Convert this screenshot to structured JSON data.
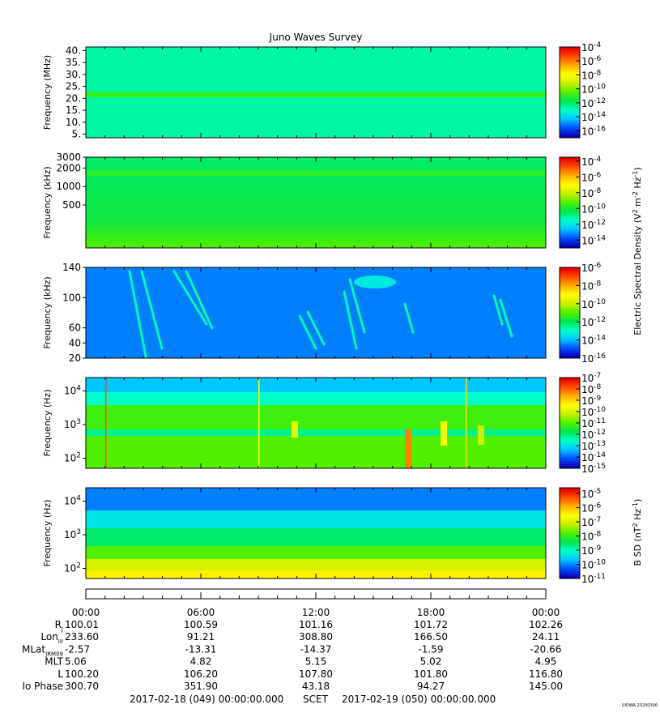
{
  "title": "Juno Waves Survey",
  "credit": "UIOWA 20200306",
  "colors": {
    "colormap": [
      "#0a00b4",
      "#0050ff",
      "#00c8ff",
      "#00ffc8",
      "#00e650",
      "#50f000",
      "#c8f000",
      "#ffff00",
      "#ffb400",
      "#ff5000",
      "#e60000"
    ]
  },
  "chart_data": [
    {
      "type": "heatmap",
      "ylabel": "Frequency (MHz)",
      "yticks": [
        "5.",
        "10.",
        "15.",
        "20.",
        "25.",
        "30.",
        "35.",
        "40."
      ],
      "ylim": [
        3.5,
        41.5
      ],
      "background_level": 0.33,
      "bands": [
        {
          "freq": 21.5,
          "level": 0.47
        }
      ],
      "colorbar_ticks": [
        {
          "base": "10",
          "exp": "-4"
        },
        {
          "base": "10",
          "exp": "-6"
        },
        {
          "base": "10",
          "exp": "-8"
        },
        {
          "base": "10",
          "exp": "-10"
        },
        {
          "base": "10",
          "exp": "-12"
        },
        {
          "base": "10",
          "exp": "-14"
        },
        {
          "base": "10",
          "exp": "-16"
        }
      ],
      "clim_exp": [
        -17,
        -4
      ]
    },
    {
      "type": "heatmap",
      "ylabel": "Frequency (kHz)",
      "yticks": [
        "500",
        "1000",
        "2000",
        "3000"
      ],
      "ylim": [
        100,
        3000
      ],
      "scale": "log",
      "background_level": 0.4,
      "bands": [
        {
          "freq": 1650,
          "level": 0.46
        }
      ],
      "colorbar_ticks": [
        {
          "base": "10",
          "exp": "-4"
        },
        {
          "base": "10",
          "exp": "-6"
        },
        {
          "base": "10",
          "exp": "-8"
        },
        {
          "base": "10",
          "exp": "-10"
        },
        {
          "base": "10",
          "exp": "-12"
        },
        {
          "base": "10",
          "exp": "-14"
        }
      ],
      "clim_exp": [
        -15,
        -3.5
      ]
    },
    {
      "type": "heatmap",
      "ylabel": "Frequency (kHz)",
      "yticks": [
        "20",
        "40",
        "60",
        "100",
        "140"
      ],
      "ylim": [
        20,
        140
      ],
      "background_level": 0.14,
      "colorbar_ticks": [
        {
          "base": "10",
          "exp": "-6"
        },
        {
          "base": "10",
          "exp": "-8"
        },
        {
          "base": "10",
          "exp": "-10"
        },
        {
          "base": "10",
          "exp": "-12"
        },
        {
          "base": "10",
          "exp": "-14"
        },
        {
          "base": "10",
          "exp": "-16"
        }
      ],
      "clim_exp": [
        -16,
        -6
      ]
    },
    {
      "type": "heatmap",
      "ylabel": "Frequency (Hz)",
      "yticks": [
        {
          "base": "10",
          "exp": "2"
        },
        {
          "base": "10",
          "exp": "3"
        },
        {
          "base": "10",
          "exp": "4"
        }
      ],
      "ylim": [
        50,
        25000
      ],
      "scale": "log",
      "colorbar_ticks": [
        {
          "base": "10",
          "exp": "-7"
        },
        {
          "base": "10",
          "exp": "-8"
        },
        {
          "base": "10",
          "exp": "-9"
        },
        {
          "base": "10",
          "exp": "-10"
        },
        {
          "base": "10",
          "exp": "-11"
        },
        {
          "base": "10",
          "exp": "-12"
        },
        {
          "base": "10",
          "exp": "-13"
        },
        {
          "base": "10",
          "exp": "-14"
        },
        {
          "base": "10",
          "exp": "-15"
        }
      ],
      "clim_exp": [
        -15,
        -7
      ]
    },
    {
      "type": "heatmap",
      "ylabel": "Frequency (Hz)",
      "yticks": [
        {
          "base": "10",
          "exp": "2"
        },
        {
          "base": "10",
          "exp": "3"
        },
        {
          "base": "10",
          "exp": "4"
        }
      ],
      "ylim": [
        50,
        25000
      ],
      "scale": "log",
      "colorbar_ticks": [
        {
          "base": "10",
          "exp": "-5"
        },
        {
          "base": "10",
          "exp": "-6"
        },
        {
          "base": "10",
          "exp": "-7"
        },
        {
          "base": "10",
          "exp": "-8"
        },
        {
          "base": "10",
          "exp": "-9"
        },
        {
          "base": "10",
          "exp": "-10"
        },
        {
          "base": "10",
          "exp": "-11"
        }
      ],
      "clim_exp": [
        -11,
        -4.6
      ]
    }
  ],
  "colorbar_labels": {
    "electric": "Electric Spectral Density (V",
    "bfield": "B SD (nT",
    "bfield_unit": "Hz"
  },
  "ephemeris": {
    "time_ticks": [
      "00:00",
      "06:00",
      "12:00",
      "18:00",
      "00:00"
    ],
    "rows": [
      {
        "label": "R",
        "sub": "J",
        "values": [
          "100.01",
          "100.59",
          "101.16",
          "101.72",
          "102.26"
        ]
      },
      {
        "label": "Lon",
        "sub": "III",
        "values": [
          "233.60",
          "91.21",
          "308.80",
          "166.50",
          "24.11"
        ]
      },
      {
        "label": "MLat",
        "sub": "JRM09",
        "values": [
          "-2.57",
          "-13.31",
          "-14.37",
          "-1.59",
          "-20.66"
        ]
      },
      {
        "label": "MLT",
        "sub": "",
        "values": [
          "5.06",
          "4.82",
          "5.15",
          "5.02",
          "4.95"
        ]
      },
      {
        "label": "L",
        "sub": "",
        "values": [
          "100.20",
          "106.20",
          "107.80",
          "101.80",
          "116.80"
        ]
      },
      {
        "label": "Io Phase",
        "sub": "",
        "values": [
          "300.70",
          "351.90",
          "43.18",
          "94.27",
          "145.00"
        ]
      }
    ],
    "start": "2017-02-18 (049) 00:00:00.000",
    "scet": "SCET",
    "end": "2017-02-19 (050) 00:00:00.000"
  }
}
